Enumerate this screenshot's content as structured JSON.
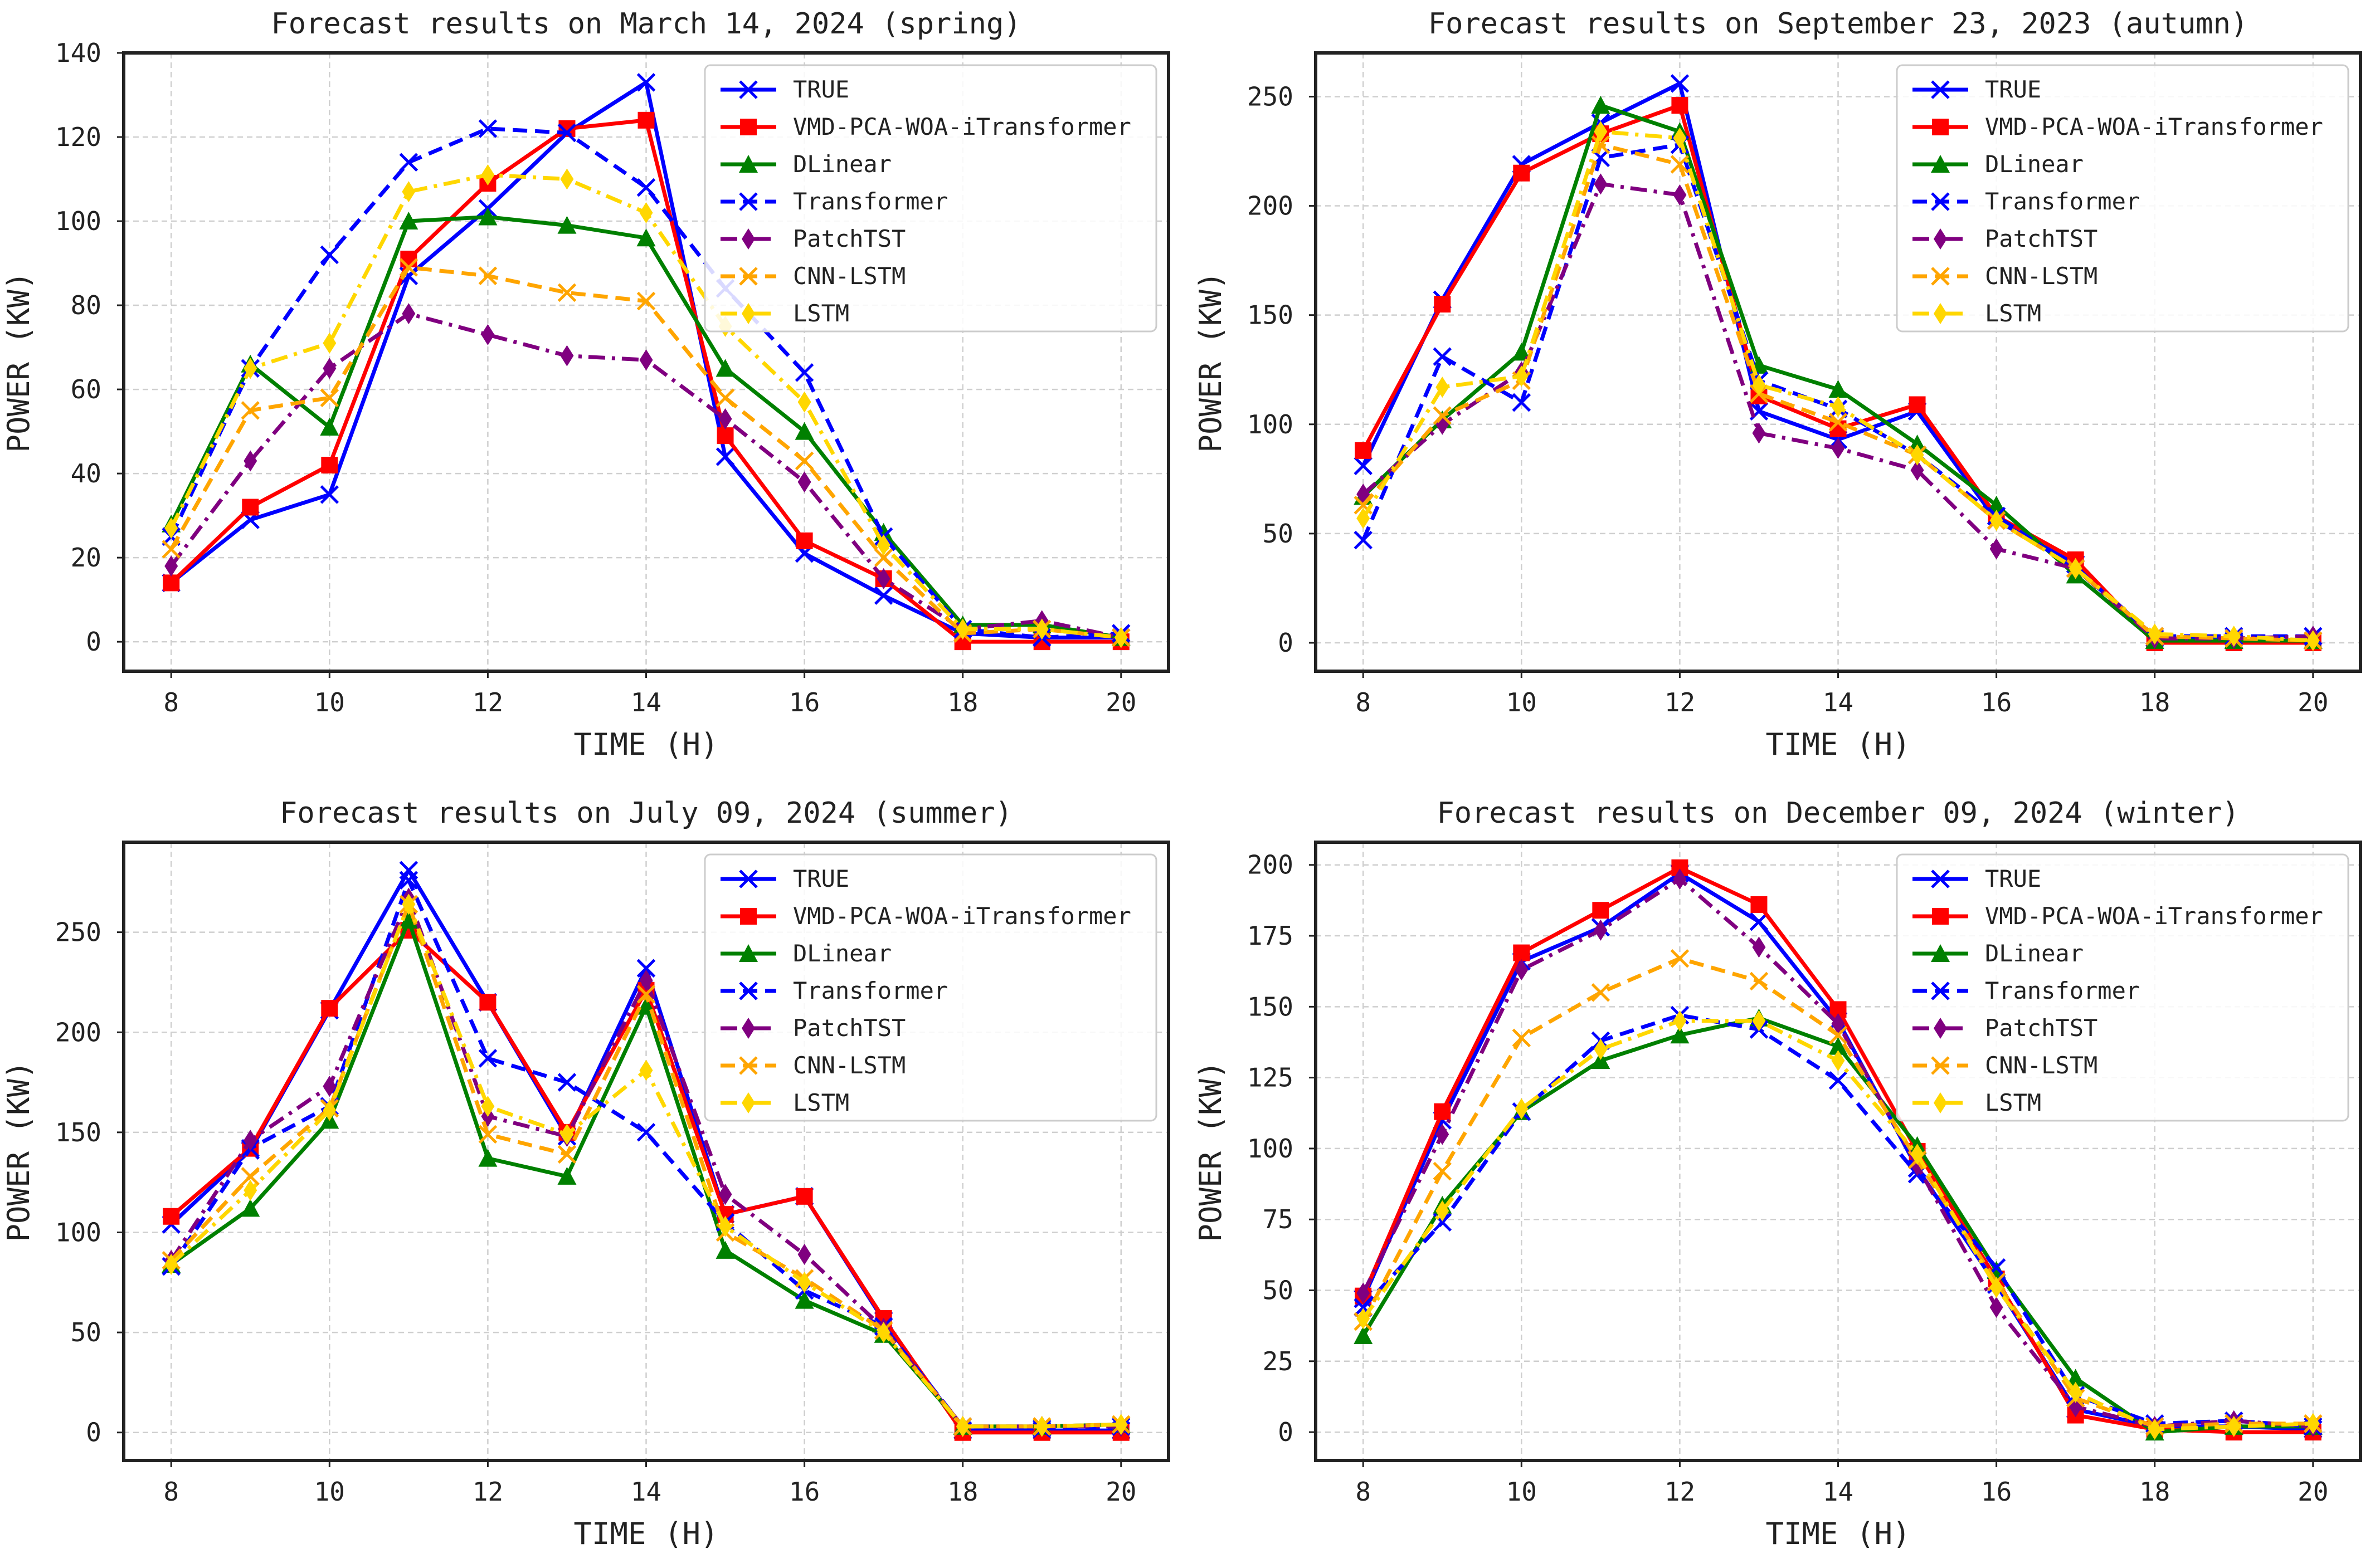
{
  "series_styles": [
    {
      "name": "TRUE",
      "color": "#0000ff",
      "dash": "solid",
      "marker": "x"
    },
    {
      "name": "VMD-PCA-WOA-iTransformer",
      "color": "#ff0000",
      "dash": "solid",
      "marker": "square"
    },
    {
      "name": "DLinear",
      "color": "#008000",
      "dash": "solid",
      "marker": "triangle"
    },
    {
      "name": "Transformer",
      "color": "#0000ff",
      "dash": "dashed",
      "marker": "x"
    },
    {
      "name": "PatchTST",
      "color": "#800080",
      "dash": "dashdot",
      "marker": "diamond"
    },
    {
      "name": "CNN-LSTM",
      "color": "#ffa500",
      "dash": "dashed",
      "marker": "x"
    },
    {
      "name": "LSTM",
      "color": "#ffd700",
      "dash": "dashdot",
      "marker": "diamond"
    }
  ],
  "chart_data": [
    {
      "type": "line",
      "title": "Forecast results on March 14, 2024 (spring)",
      "xlabel": "TIME (H)",
      "ylabel": "POWER (KW)",
      "x": [
        8,
        9,
        10,
        11,
        12,
        13,
        14,
        15,
        16,
        17,
        18,
        19,
        20
      ],
      "xticks": [
        8,
        10,
        12,
        14,
        16,
        18,
        20
      ],
      "xlim": [
        7.4,
        20.6
      ],
      "yticks": [
        0,
        20,
        40,
        60,
        80,
        100,
        120,
        140
      ],
      "ylim": [
        -7,
        140
      ],
      "grid": true,
      "legend": "top-right",
      "series": [
        {
          "name": "TRUE",
          "values": [
            14,
            29,
            35,
            87,
            103,
            121,
            133,
            44,
            21,
            11,
            2,
            1,
            1
          ]
        },
        {
          "name": "VMD-PCA-WOA-iTransformer",
          "values": [
            14,
            32,
            42,
            91,
            109,
            122,
            124,
            49,
            24,
            15,
            0,
            0,
            0
          ]
        },
        {
          "name": "DLinear",
          "values": [
            28,
            66,
            51,
            100,
            101,
            99,
            96,
            65,
            50,
            26,
            4,
            4,
            1
          ]
        },
        {
          "name": "Transformer",
          "values": [
            25,
            65,
            92,
            114,
            122,
            121,
            108,
            84,
            64,
            25,
            3,
            1,
            2
          ]
        },
        {
          "name": "PatchTST",
          "values": [
            18,
            43,
            65,
            78,
            73,
            68,
            67,
            53,
            38,
            15,
            3,
            5,
            1
          ]
        },
        {
          "name": "CNN-LSTM",
          "values": [
            22,
            55,
            58,
            89,
            87,
            83,
            81,
            58,
            43,
            20,
            2,
            3,
            1
          ]
        },
        {
          "name": "LSTM",
          "values": [
            27,
            65,
            71,
            107,
            111,
            110,
            102,
            75,
            57,
            23,
            3,
            3,
            1
          ]
        }
      ]
    },
    {
      "type": "line",
      "title": "Forecast results on September 23, 2023 (autumn)",
      "xlabel": "TIME (H)",
      "ylabel": "POWER (KW)",
      "x": [
        8,
        9,
        10,
        11,
        12,
        13,
        14,
        15,
        16,
        17,
        18,
        19,
        20
      ],
      "xticks": [
        8,
        10,
        12,
        14,
        16,
        18,
        20
      ],
      "xlim": [
        7.4,
        20.6
      ],
      "yticks": [
        0,
        50,
        100,
        150,
        200,
        250
      ],
      "ylim": [
        -13,
        270
      ],
      "grid": true,
      "legend": "top-right",
      "series": [
        {
          "name": "TRUE",
          "values": [
            81,
            157,
            219,
            238,
            256,
            106,
            93,
            106,
            56,
            36,
            2,
            1,
            1
          ]
        },
        {
          "name": "VMD-PCA-WOA-iTransformer",
          "values": [
            88,
            155,
            215,
            233,
            246,
            113,
            98,
            109,
            58,
            38,
            0,
            0,
            0
          ]
        },
        {
          "name": "DLinear",
          "values": [
            67,
            102,
            133,
            246,
            234,
            127,
            116,
            91,
            63,
            31,
            1,
            1,
            1
          ]
        },
        {
          "name": "Transformer",
          "values": [
            47,
            131,
            110,
            222,
            228,
            120,
            107,
            86,
            58,
            34,
            3,
            3,
            3
          ]
        },
        {
          "name": "PatchTST",
          "values": [
            68,
            100,
            124,
            210,
            205,
            96,
            89,
            79,
            43,
            34,
            2,
            2,
            3
          ]
        },
        {
          "name": "CNN-LSTM",
          "values": [
            63,
            104,
            120,
            228,
            219,
            114,
            101,
            86,
            56,
            34,
            3,
            2,
            1
          ]
        },
        {
          "name": "LSTM",
          "values": [
            57,
            117,
            122,
            234,
            231,
            118,
            108,
            86,
            56,
            34,
            4,
            3,
            1
          ]
        }
      ]
    },
    {
      "type": "line",
      "title": "Forecast results on July 09, 2024 (summer)",
      "xlabel": "TIME (H)",
      "ylabel": "POWER (KW)",
      "x": [
        8,
        9,
        10,
        11,
        12,
        13,
        14,
        15,
        16,
        17,
        18,
        19,
        20
      ],
      "xticks": [
        8,
        10,
        12,
        14,
        16,
        18,
        20
      ],
      "xlim": [
        7.4,
        20.6
      ],
      "yticks": [
        0,
        50,
        100,
        150,
        200,
        250
      ],
      "ylim": [
        -14,
        295
      ],
      "grid": true,
      "legend": "top-right",
      "series": [
        {
          "name": "TRUE",
          "values": [
            104,
            141,
            211,
            281,
            215,
            148,
            232,
            109,
            118,
            56,
            1,
            1,
            1
          ]
        },
        {
          "name": "VMD-PCA-WOA-iTransformer",
          "values": [
            108,
            142,
            212,
            251,
            215,
            150,
            221,
            109,
            118,
            57,
            0,
            0,
            0
          ]
        },
        {
          "name": "DLinear",
          "values": [
            84,
            112,
            156,
            256,
            137,
            128,
            213,
            91,
            66,
            49,
            3,
            3,
            4
          ]
        },
        {
          "name": "Transformer",
          "values": [
            83,
            142,
            163,
            276,
            187,
            175,
            150,
            105,
            71,
            53,
            3,
            2,
            3
          ]
        },
        {
          "name": "PatchTST",
          "values": [
            86,
            146,
            173,
            267,
            158,
            148,
            226,
            119,
            89,
            52,
            3,
            3,
            3
          ]
        },
        {
          "name": "CNN-LSTM",
          "values": [
            86,
            128,
            162,
            264,
            149,
            139,
            219,
            100,
            77,
            51,
            3,
            3,
            4
          ]
        },
        {
          "name": "LSTM",
          "values": [
            84,
            121,
            161,
            264,
            163,
            149,
            181,
            103,
            75,
            50,
            3,
            3,
            4
          ]
        }
      ]
    },
    {
      "type": "line",
      "title": "Forecast results on December 09, 2024 (winter)",
      "xlabel": "TIME (H)",
      "ylabel": "POWER (KW)",
      "x": [
        8,
        9,
        10,
        11,
        12,
        13,
        14,
        15,
        16,
        17,
        18,
        19,
        20
      ],
      "xticks": [
        8,
        10,
        12,
        14,
        16,
        18,
        20
      ],
      "xlim": [
        7.4,
        20.6
      ],
      "yticks": [
        0,
        25,
        50,
        75,
        100,
        125,
        150,
        175,
        200
      ],
      "ylim": [
        -10,
        208
      ],
      "grid": true,
      "legend": "top-right",
      "series": [
        {
          "name": "TRUE",
          "values": [
            47,
            110,
            166,
            178,
            197,
            180,
            145,
            93,
            52,
            8,
            2,
            2,
            1
          ]
        },
        {
          "name": "VMD-PCA-WOA-iTransformer",
          "values": [
            48,
            113,
            169,
            184,
            199,
            186,
            149,
            99,
            54,
            6,
            1,
            0,
            0
          ]
        },
        {
          "name": "DLinear",
          "values": [
            34,
            80,
            113,
            131,
            140,
            146,
            136,
            101,
            57,
            19,
            0,
            2,
            2
          ]
        },
        {
          "name": "Transformer",
          "values": [
            44,
            74,
            113,
            138,
            147,
            142,
            124,
            91,
            58,
            13,
            3,
            4,
            2
          ]
        },
        {
          "name": "PatchTST",
          "values": [
            49,
            105,
            163,
            177,
            195,
            171,
            144,
            94,
            44,
            9,
            2,
            4,
            2
          ]
        },
        {
          "name": "CNN-LSTM",
          "values": [
            39,
            92,
            139,
            155,
            167,
            159,
            140,
            96,
            53,
            12,
            2,
            3,
            3
          ]
        },
        {
          "name": "LSTM",
          "values": [
            40,
            78,
            114,
            135,
            145,
            145,
            131,
            98,
            51,
            14,
            1,
            2,
            3
          ]
        }
      ]
    }
  ]
}
